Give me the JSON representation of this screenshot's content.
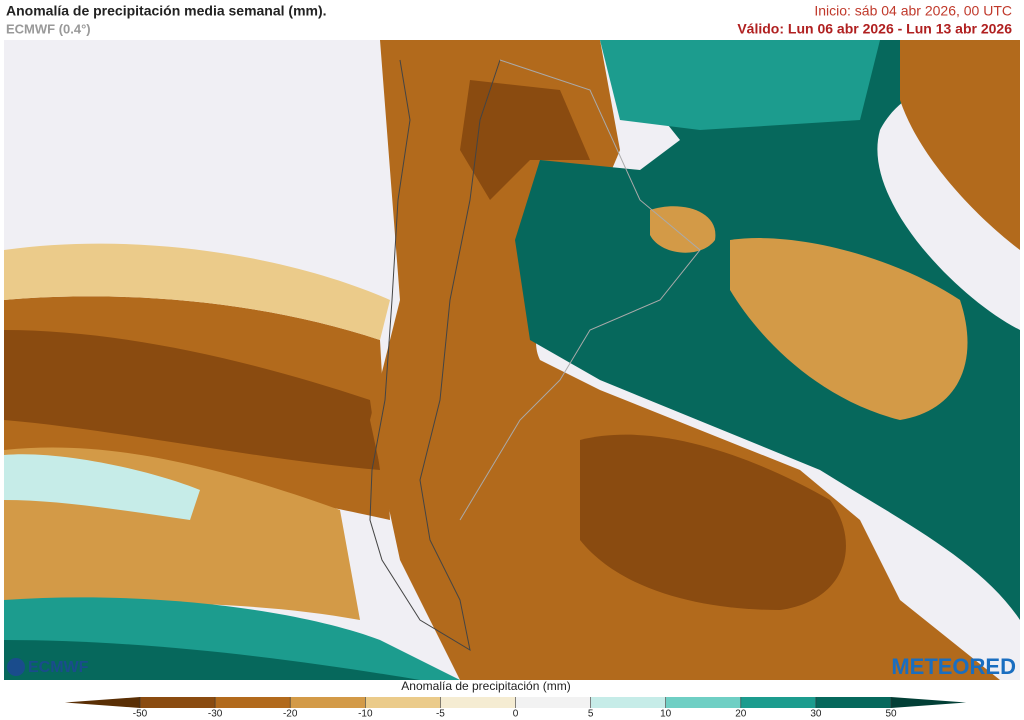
{
  "header": {
    "title": "Anomalía de precipitación media semanal (mm).",
    "model": "ECMWF (0.4°)",
    "start": "Inicio:  sáb 04 abr 2026, 00 UTC",
    "valid": "Válido: Lun 06 abr 2026 - Lun 13 abr 2026"
  },
  "logos": {
    "left": "ECMWF",
    "right": "METEORED"
  },
  "legend": {
    "title": "Anomalía de precipitación (mm)",
    "ticks": [
      -50,
      -30,
      -20,
      -10,
      -5,
      0,
      5,
      10,
      20,
      30,
      50
    ],
    "colors": [
      "#5a2f05",
      "#8a4b10",
      "#b26a1c",
      "#d39a47",
      "#ebcb8a",
      "#f5ecd2",
      "#f2f2f2",
      "#c6ece8",
      "#6fcfc4",
      "#1c9c8e",
      "#06685c",
      "#023f36"
    ]
  }
}
